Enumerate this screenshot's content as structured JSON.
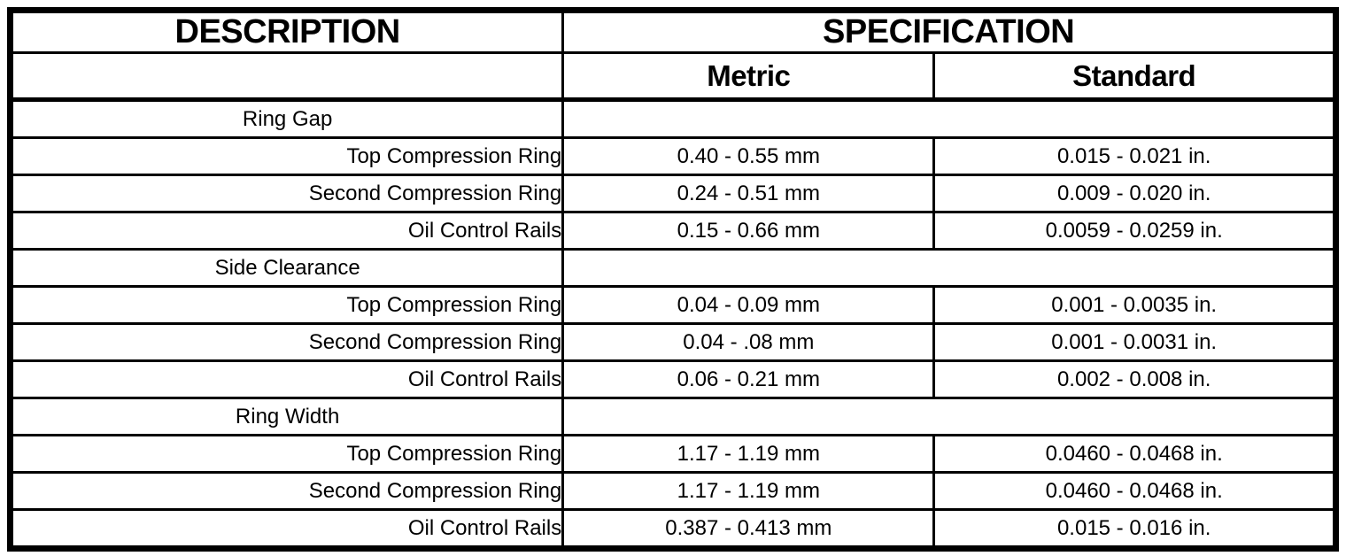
{
  "header": {
    "description": "DESCRIPTION",
    "specification": "SPECIFICATION",
    "metric": "Metric",
    "standard": "Standard"
  },
  "colors": {
    "border": "#000000",
    "text": "#000000",
    "background": "#ffffff"
  },
  "table": {
    "columns": [
      "DESCRIPTION",
      "Metric",
      "Standard"
    ],
    "rows": [
      {
        "type": "section",
        "label": "Ring Gap"
      },
      {
        "type": "data",
        "desc": "Top Compression Ring",
        "metric": "0.40 - 0.55 mm",
        "standard": "0.015 - 0.021 in."
      },
      {
        "type": "data",
        "desc": "Second Compression Ring",
        "metric": "0.24 - 0.51 mm",
        "standard": "0.009 - 0.020 in."
      },
      {
        "type": "data",
        "desc": "Oil Control Rails",
        "metric": "0.15 - 0.66 mm",
        "standard": "0.0059 - 0.0259 in."
      },
      {
        "type": "section",
        "label": "Side Clearance"
      },
      {
        "type": "data",
        "desc": "Top Compression Ring",
        "metric": "0.04 - 0.09 mm",
        "standard": "0.001 - 0.0035 in."
      },
      {
        "type": "data",
        "desc": "Second Compression Ring",
        "metric": "0.04 - .08 mm",
        "standard": "0.001 - 0.0031 in."
      },
      {
        "type": "data",
        "desc": "Oil Control Rails",
        "metric": "0.06 - 0.21 mm",
        "standard": "0.002 - 0.008 in."
      },
      {
        "type": "section",
        "label": "Ring Width"
      },
      {
        "type": "data",
        "desc": "Top Compression Ring",
        "metric": "1.17 - 1.19 mm",
        "standard": "0.0460 - 0.0468 in."
      },
      {
        "type": "data",
        "desc": "Second Compression Ring",
        "metric": "1.17 - 1.19 mm",
        "standard": "0.0460 - 0.0468 in."
      },
      {
        "type": "data",
        "desc": "Oil Control Rails",
        "metric": "0.387 - 0.413 mm",
        "standard": "0.015 - 0.016 in."
      }
    ]
  }
}
